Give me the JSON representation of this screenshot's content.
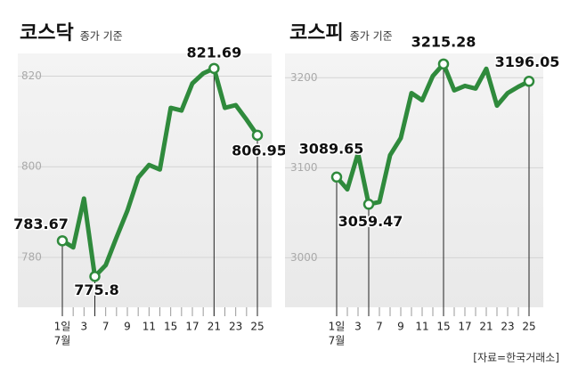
{
  "chart_data": [
    {
      "type": "line",
      "title": "코스닥",
      "subtitle": "종가 기준",
      "categories": [
        "1일",
        null,
        "3",
        null,
        "7",
        null,
        "9",
        null,
        "11",
        null,
        "15",
        null,
        "17",
        null,
        "21",
        null,
        "23",
        null,
        "25"
      ],
      "month": "7월",
      "series": [
        {
          "name": "코스닥",
          "color": "#2f8a3c",
          "values": [
            783.67,
            782.2,
            793,
            775.8,
            778.3,
            784.4,
            790.3,
            797.6,
            800.4,
            799.4,
            813,
            812.4,
            818.4,
            820.6,
            821.69,
            813,
            813.6,
            810.4,
            806.95
          ]
        }
      ],
      "ylim": [
        769,
        825
      ],
      "yticks": [
        780,
        800,
        820
      ],
      "grid": true
    },
    {
      "type": "line",
      "title": "코스피",
      "subtitle": "종가 기준",
      "categories": [
        "1일",
        null,
        "3",
        null,
        "7",
        null,
        "9",
        null,
        "11",
        null,
        "15",
        null,
        "17",
        null,
        "21",
        null,
        "23",
        null,
        "25"
      ],
      "month": "7월",
      "series": [
        {
          "name": "코스피",
          "color": "#2f8a3c",
          "values": [
            3089.65,
            3076,
            3116,
            3059.47,
            3062,
            3114,
            3133,
            3183,
            3175,
            3202,
            3215.28,
            3186,
            3191,
            3188,
            3210,
            3169,
            3183,
            3190,
            3196.05
          ]
        }
      ],
      "ylim": [
        2945,
        3227
      ],
      "yticks": [
        3000,
        3100,
        3200
      ],
      "grid": true
    }
  ],
  "source": "[자료=한국거래소]"
}
